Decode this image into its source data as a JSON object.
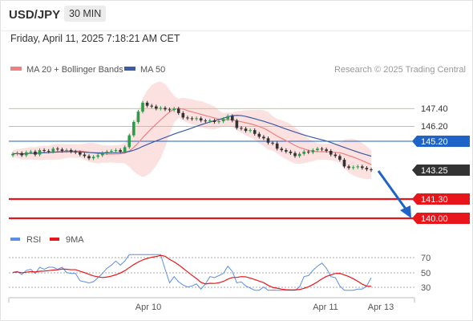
{
  "header": {
    "pair": "USD/JPY",
    "timeframe": "30 MIN",
    "datetime": "Friday, April 11, 2025 7:18:21 AM CET"
  },
  "legend": {
    "ma20_label": "MA 20 + Bollinger Bands",
    "ma50_label": "MA 50",
    "credit": "Research © 2025 Trading Central"
  },
  "levels": [
    {
      "value": "147.40",
      "kind": "resistance",
      "color": "#b6d46e"
    },
    {
      "value": "146.20",
      "kind": "resistance",
      "color": "#b6d46e"
    },
    {
      "value": "145.20",
      "kind": "pivot",
      "color": "#1e63c8"
    },
    {
      "value": "143.25",
      "kind": "last",
      "color": "#333333"
    },
    {
      "value": "141.30",
      "kind": "support",
      "color": "#e8161b"
    },
    {
      "value": "140.00",
      "kind": "support",
      "color": "#e8161b"
    }
  ],
  "rsi": {
    "legend_rsi": "RSI",
    "legend_9ma": "9MA",
    "ticks": [
      "70",
      "50",
      "30"
    ]
  },
  "xaxis": {
    "labels": [
      "Apr 10",
      "Apr 11",
      "Apr 13"
    ]
  },
  "colors": {
    "ma20": "#f08080",
    "bollinger": "#fcdcdc",
    "ma50": "#3b5ba5",
    "rsi": "#5b8ee6",
    "rsi_ma": "#e8161b",
    "arrow": "#1e63c8",
    "bull": "#2a9d4b",
    "bear": "#333333"
  }
}
